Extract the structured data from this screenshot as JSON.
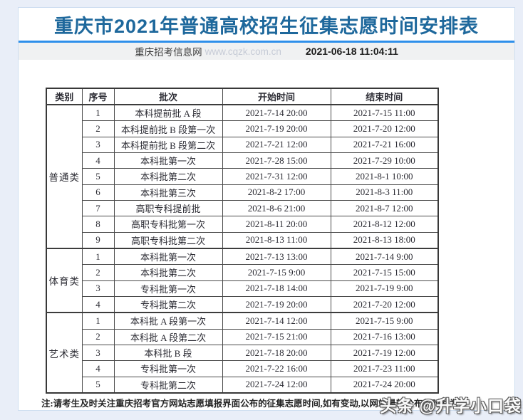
{
  "page": {
    "title": "重庆市2021年普通高校招生征集志愿时间安排表",
    "source": {
      "site_name": "重庆招考信息网",
      "site_url": "www.cqzk.com.cn",
      "datetime": "2021-06-18 11:04:11"
    },
    "note": "注:请考生及时关注重庆招考官方网站志愿填报界面公布的征集志愿时间,如有变动,以网站最新公布的时间为",
    "watermark": "头条 @升学小口袋",
    "colors": {
      "accent_blue": "#2e8fea",
      "title_blue": "#1e689c",
      "page_background": "#e9eef8",
      "source_bar_gray": "#f0f1f2"
    }
  },
  "table": {
    "headers": [
      "类别",
      "序号",
      "批次",
      "开始时间",
      "结束时间"
    ],
    "groups": [
      {
        "category": "普通类",
        "rows": [
          [
            "1",
            "本科提前批 A 段",
            "2021-7-14 20:00",
            "2021-7-15 11:00"
          ],
          [
            "2",
            "本科提前批 B 段第一次",
            "2021-7-19 20:00",
            "2021-7-20 12:00"
          ],
          [
            "3",
            "本科提前批 B 段第二次",
            "2021-7-21 12:00",
            "2021-7-21 16:00"
          ],
          [
            "4",
            "本科批第一次",
            "2021-7-28 15:00",
            "2021-7-29 10:00"
          ],
          [
            "5",
            "本科批第二次",
            "2021-7-31 12:00",
            "2021-8-1 10:00"
          ],
          [
            "6",
            "本科批第三次",
            "2021-8-2 17:00",
            "2021-8-3 11:00"
          ],
          [
            "7",
            "高职专科提前批",
            "2021-8-6 21:00",
            "2021-8-7 12:00"
          ],
          [
            "8",
            "高职专科批第一次",
            "2021-8-11 20:00",
            "2021-8-12 12:00"
          ],
          [
            "9",
            "高职专科批第二次",
            "2021-8-13 11:00",
            "2021-8-13 18:00"
          ]
        ]
      },
      {
        "category": "体育类",
        "rows": [
          [
            "1",
            "本科批第一次",
            "2021-7-13 13:00",
            "2021-7-14 9:00"
          ],
          [
            "2",
            "本科批第二次",
            "2021-7-15 9:00",
            "2021-7-15 15:00"
          ],
          [
            "3",
            "专科批第一次",
            "2021-7-18 14:00",
            "2021-7-19 9:00"
          ],
          [
            "4",
            "专科批第二次",
            "2021-7-19 20:00",
            "2021-7-20 12:00"
          ]
        ]
      },
      {
        "category": "艺术类",
        "rows": [
          [
            "1",
            "本科批 A 段第一次",
            "2021-7-14 12:00",
            "2021-7-15 9:00"
          ],
          [
            "2",
            "本科批 A 段第二次",
            "2021-7-15 21:00",
            "2021-7-16 13:00"
          ],
          [
            "3",
            "本科批 B 段",
            "2021-7-18 20:00",
            "2021-7-19 12:00"
          ],
          [
            "4",
            "专科批第一次",
            "2021-7-22 16:00",
            "2021-7-23 11:00"
          ],
          [
            "5",
            "专科批第二次",
            "2021-7-24 12:00",
            "2021-7-24 20:00"
          ]
        ]
      }
    ]
  }
}
